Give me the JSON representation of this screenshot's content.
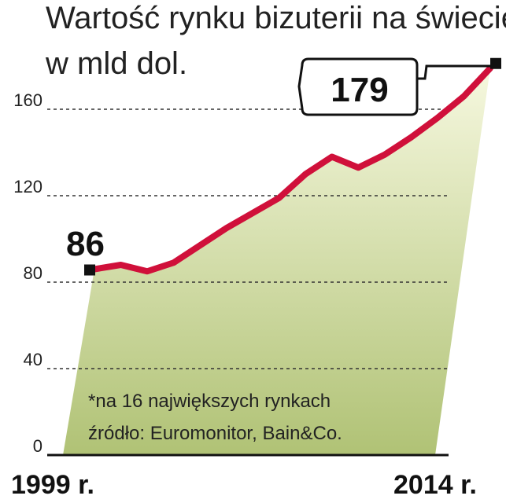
{
  "title_line1": "Wartość rynku bizuterii na świecie*",
  "title_line2": "w mld dol.",
  "footnote": "*na 16 największych rynkach",
  "source": "źródło: Euromonitor, Bain&Co.",
  "x_start_label": "1999 r.",
  "x_end_label": "2014 r.",
  "start_value_label": "86",
  "end_value_label": "179",
  "colors": {
    "line": "#d0103a",
    "area_top": "#f6f8df",
    "area_bottom": "#b0c275"
  },
  "chart_data": {
    "type": "area",
    "x": [
      1999,
      2000,
      2001,
      2002,
      2003,
      2004,
      2005,
      2006,
      2007,
      2008,
      2009,
      2010,
      2011,
      2012,
      2013,
      2014
    ],
    "values": [
      86,
      88,
      85,
      89,
      97,
      105,
      112,
      119,
      130,
      138,
      133,
      139,
      147,
      156,
      166,
      179
    ],
    "yticks": [
      0,
      40,
      80,
      120,
      160
    ],
    "ylim": [
      0,
      160
    ],
    "grid": true,
    "labeled_points": [
      {
        "x": 1999,
        "label": "86"
      },
      {
        "x": 2014,
        "label": "179"
      }
    ]
  }
}
